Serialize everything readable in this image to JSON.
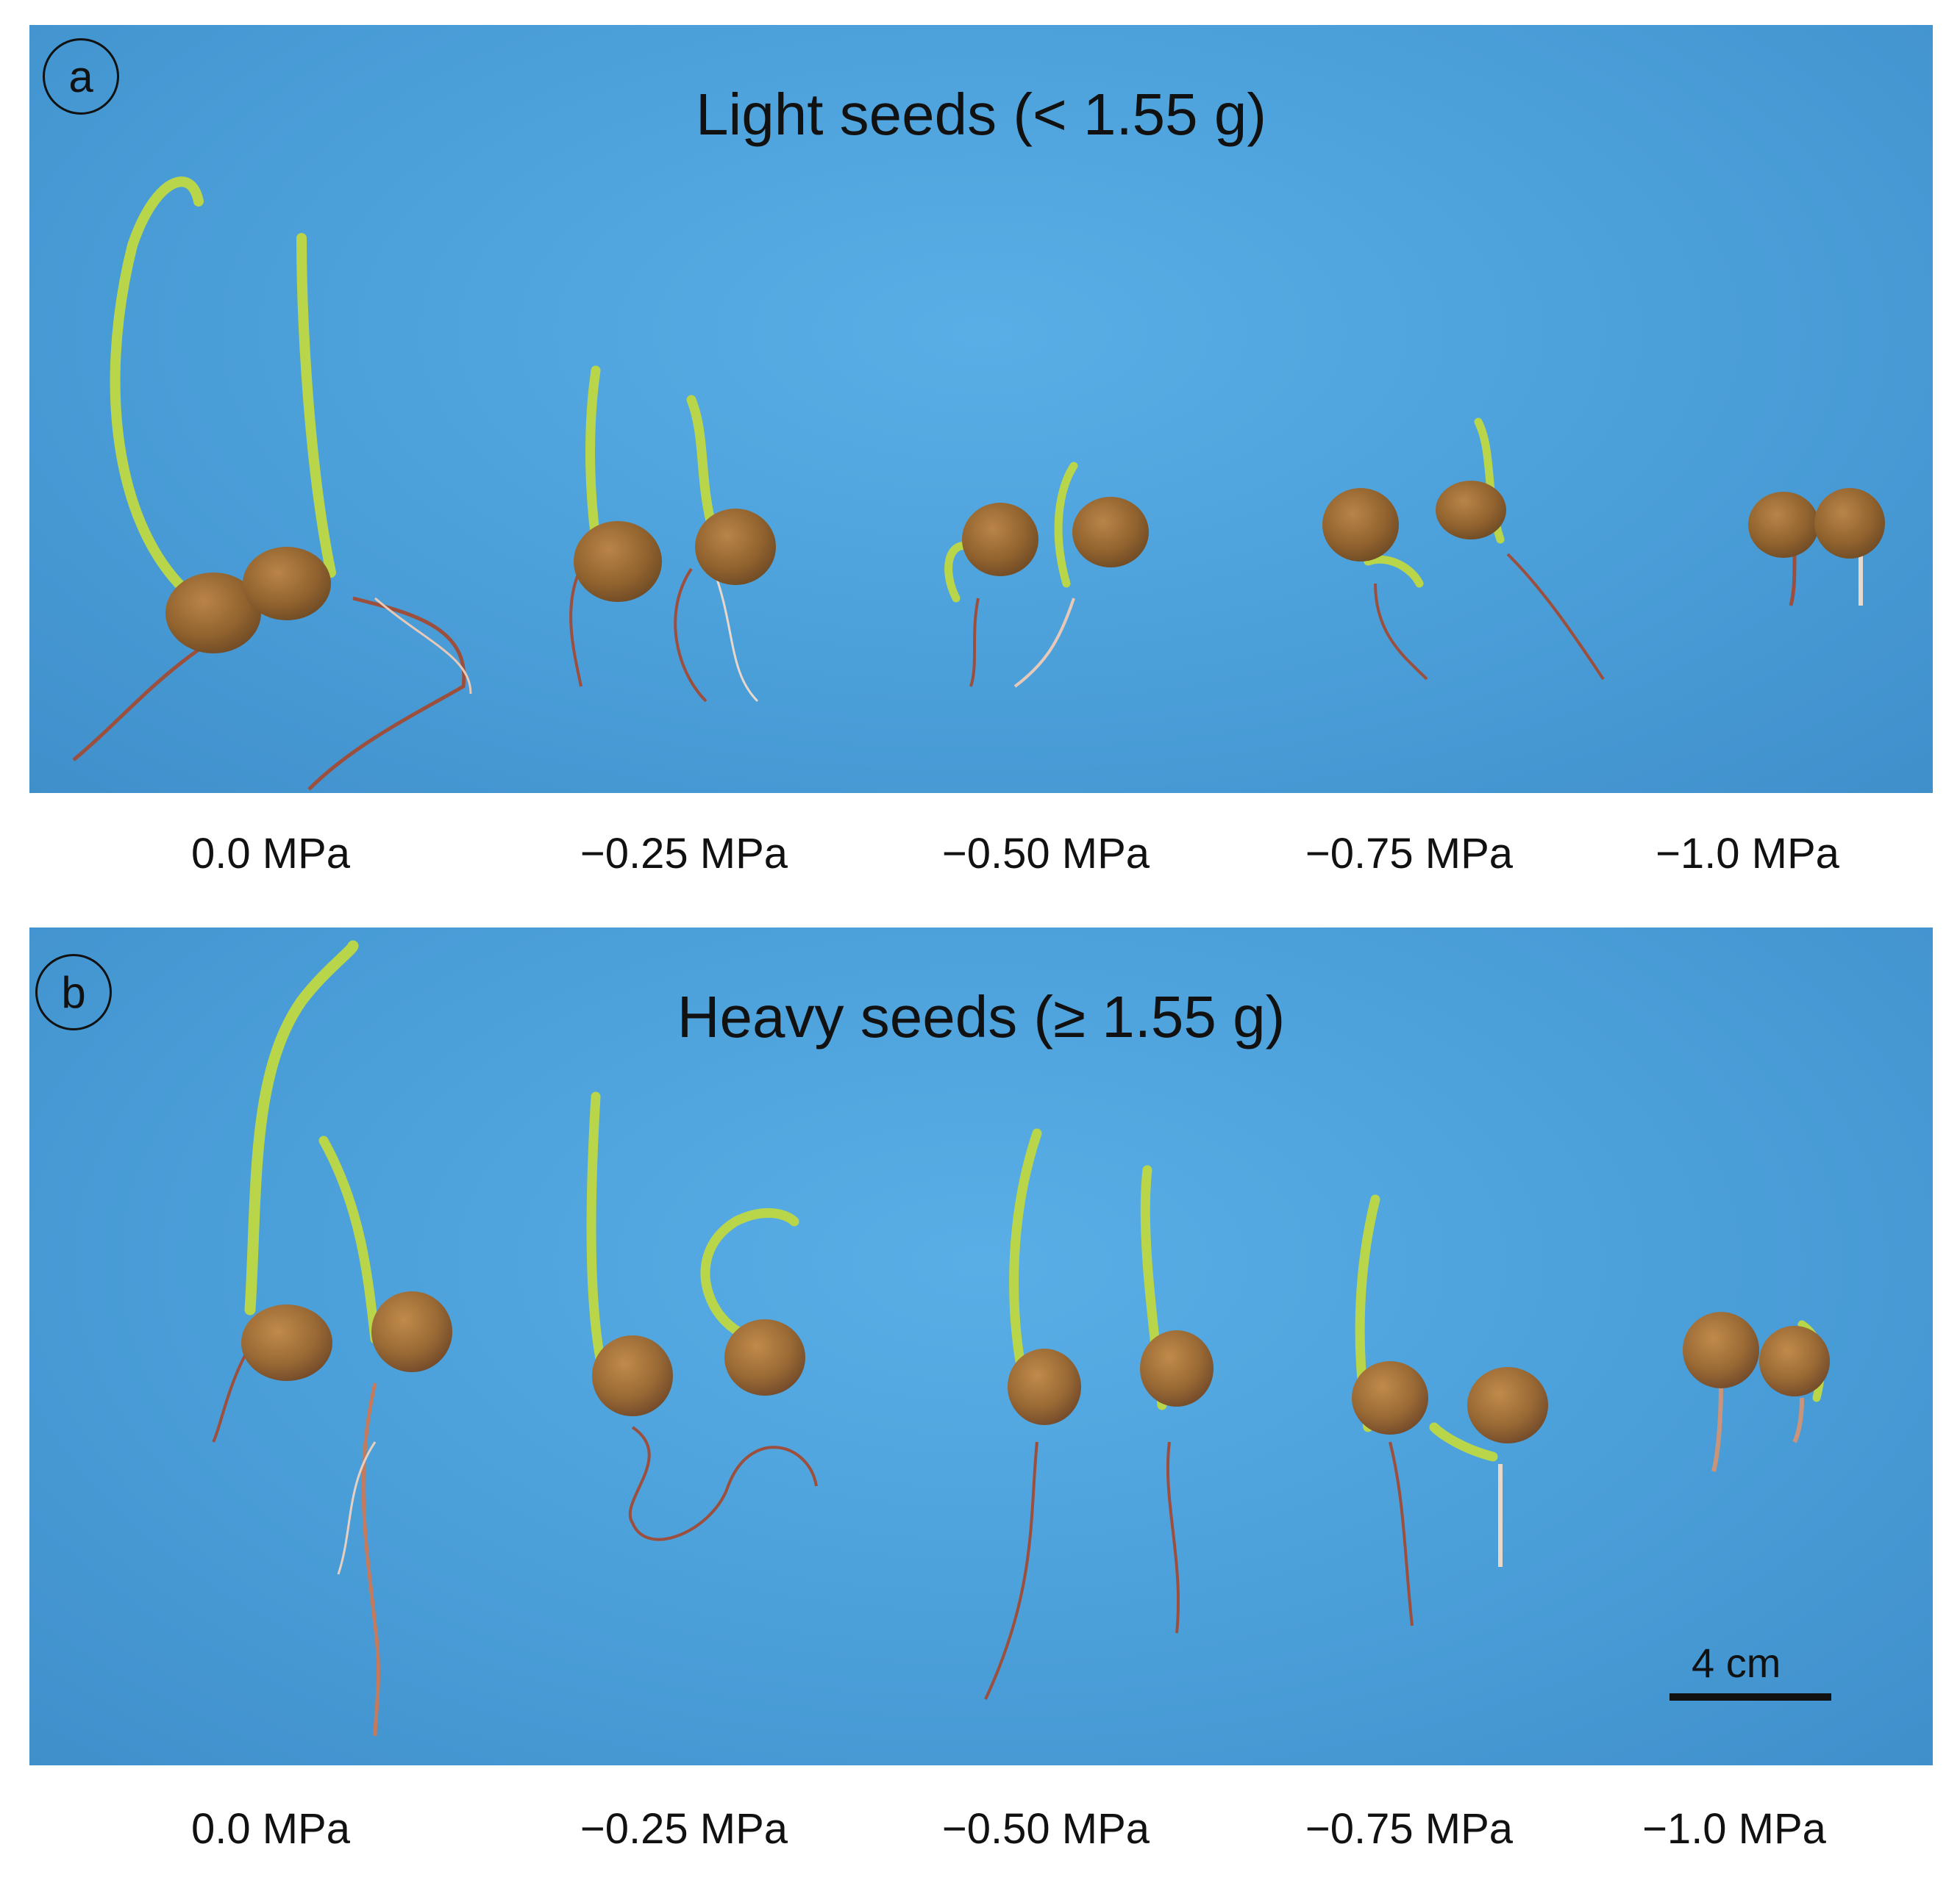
{
  "panel_a": {
    "letter": "a",
    "title": "Light seeds (< 1.55 g)",
    "labels": [
      "0.0 MPa",
      "−0.25 MPa",
      "−0.50 MPa",
      "−0.75 MPa",
      "−1.0 MPa"
    ]
  },
  "panel_b": {
    "letter": "b",
    "title": "Heavy seeds (≥ 1.55 g)",
    "labels": [
      "0.0 MPa",
      "−0.25 MPa",
      "−0.50 MPa",
      "−0.75 MPa",
      "−1.0 MPa"
    ],
    "scale_label": "4 cm"
  },
  "colors": {
    "background": "#4b9fd9",
    "seed": "#9a6a35",
    "shoot": "#b9d64a",
    "root": "#9c4f3c"
  }
}
